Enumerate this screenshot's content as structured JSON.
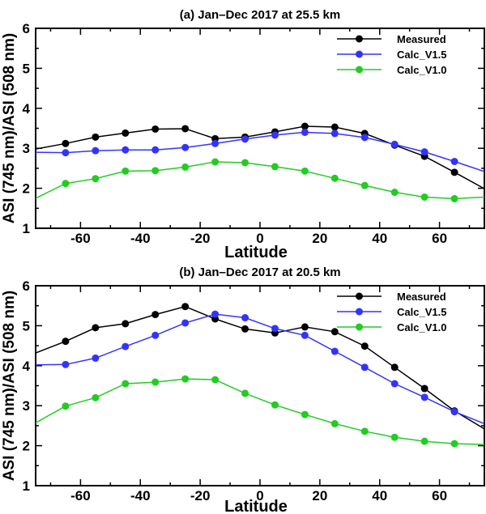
{
  "chart_data": [
    {
      "type": "line",
      "title": "(a) Jan–Dec 2017 at 25.5 km",
      "xlabel": "Latitude",
      "ylabel": "ASI (745 nm)/ASI (508 nm)",
      "xlim": [
        -75,
        75
      ],
      "ylim": [
        1,
        6
      ],
      "xticks": [
        -60,
        -40,
        -20,
        0,
        20,
        40,
        60
      ],
      "yticks": [
        1,
        2,
        3,
        4,
        5,
        6
      ],
      "legend_position": "top-right",
      "x": [
        -75,
        -65,
        -55,
        -45,
        -35,
        -25,
        -15,
        -5,
        5,
        15,
        25,
        35,
        45,
        55,
        65,
        75
      ],
      "marker_x": [
        -65,
        -55,
        -45,
        -35,
        -25,
        -15,
        -5,
        5,
        15,
        25,
        35,
        45,
        55,
        65
      ],
      "series": [
        {
          "name": "Measured",
          "color": "#000000",
          "values": [
            2.98,
            3.12,
            3.28,
            3.38,
            3.48,
            3.49,
            3.24,
            3.28,
            3.41,
            3.55,
            3.53,
            3.37,
            3.08,
            2.8,
            2.4,
            1.99
          ]
        },
        {
          "name": "Calc_V1.5",
          "color": "#3333ff",
          "values": [
            2.9,
            2.89,
            2.94,
            2.96,
            2.96,
            3.02,
            3.12,
            3.23,
            3.33,
            3.4,
            3.37,
            3.27,
            3.1,
            2.91,
            2.67,
            2.42
          ]
        },
        {
          "name": "Calc_V1.0",
          "color": "#22cc22",
          "values": [
            1.75,
            2.12,
            2.24,
            2.43,
            2.44,
            2.53,
            2.66,
            2.64,
            2.54,
            2.43,
            2.25,
            2.07,
            1.9,
            1.78,
            1.74,
            1.78
          ]
        }
      ]
    },
    {
      "type": "line",
      "title": "(b) Jan–Dec 2017 at 20.5 km",
      "xlabel": "Latitude",
      "ylabel": "ASI (745 nm)/ASI (508 nm)",
      "xlim": [
        -75,
        75
      ],
      "ylim": [
        1,
        6
      ],
      "xticks": [
        -60,
        -40,
        -20,
        0,
        20,
        40,
        60
      ],
      "yticks": [
        1,
        2,
        3,
        4,
        5,
        6
      ],
      "legend_position": "top-right",
      "x": [
        -75,
        -65,
        -55,
        -45,
        -35,
        -25,
        -15,
        -5,
        5,
        15,
        25,
        35,
        45,
        55,
        65,
        75
      ],
      "marker_x": [
        -65,
        -55,
        -45,
        -35,
        -25,
        -15,
        -5,
        5,
        15,
        25,
        35,
        45,
        55,
        65
      ],
      "series": [
        {
          "name": "Measured",
          "color": "#000000",
          "values": [
            4.32,
            4.61,
            4.95,
            5.05,
            5.28,
            5.48,
            5.17,
            4.92,
            4.82,
            4.97,
            4.85,
            4.49,
            3.96,
            3.43,
            2.87,
            2.42
          ]
        },
        {
          "name": "Calc_V1.5",
          "color": "#3333ff",
          "values": [
            4.02,
            4.03,
            4.19,
            4.48,
            4.76,
            5.07,
            5.29,
            5.2,
            4.93,
            4.76,
            4.36,
            3.96,
            3.55,
            3.21,
            2.85,
            2.55
          ]
        },
        {
          "name": "Calc_V1.0",
          "color": "#22cc22",
          "values": [
            2.57,
            2.99,
            3.2,
            3.55,
            3.59,
            3.67,
            3.65,
            3.31,
            3.02,
            2.78,
            2.55,
            2.36,
            2.21,
            2.11,
            2.05,
            2.03
          ]
        }
      ]
    }
  ]
}
